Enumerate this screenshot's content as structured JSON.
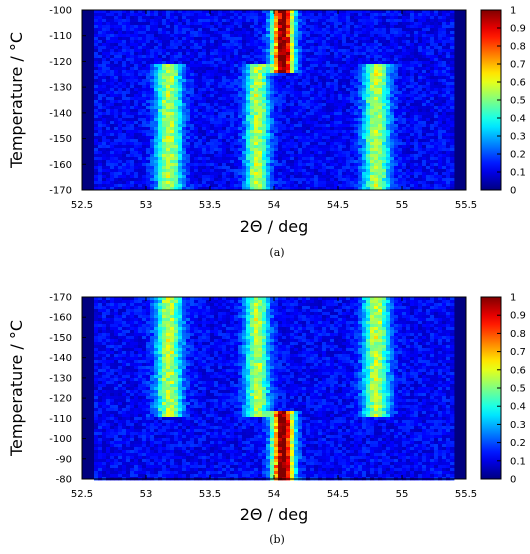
{
  "figure": {
    "caption_a": "(a)",
    "caption_b": "(b)"
  },
  "colorbar": {
    "ticks": [
      "0",
      "0.1",
      "0.2",
      "0.3",
      "0.4",
      "0.5",
      "0.6",
      "0.7",
      "0.8",
      "0.9",
      "1"
    ],
    "colormap": "jet",
    "colors": [
      "#00008f",
      "#0000ff",
      "#00ffff",
      "#80ff80",
      "#ffff00",
      "#ff0000",
      "#800000"
    ]
  },
  "chart_data": [
    {
      "type": "heatmap",
      "panel": "a",
      "xlabel": "2Θ / deg",
      "ylabel": "Temperature / °C",
      "xlim": [
        52.5,
        55.5
      ],
      "ylim": [
        -170,
        -100
      ],
      "y_axis_direction": "up",
      "xticks": [
        "52.5",
        "53",
        "53.5",
        "54",
        "54.5",
        "55",
        "55.5"
      ],
      "yticks": [
        "-170",
        "-160",
        "-150",
        "-140",
        "-130",
        "-120",
        "-110",
        "-100"
      ],
      "zlim": [
        0,
        1
      ],
      "background_intensity": 0.12,
      "data_x_range": [
        52.6,
        55.4
      ],
      "features": [
        {
          "peak_center": 53.18,
          "peak_width": 0.22,
          "t_range": [
            -170,
            -122
          ],
          "intensity": 0.45
        },
        {
          "peak_center": 53.87,
          "peak_width": 0.2,
          "t_range": [
            -170,
            -122
          ],
          "intensity": 0.45
        },
        {
          "peak_center": 54.8,
          "peak_width": 0.22,
          "t_range": [
            -170,
            -122
          ],
          "intensity": 0.45
        },
        {
          "peak_center": 54.07,
          "peak_width": 0.18,
          "t_range": [
            -123,
            -100
          ],
          "intensity": 0.95
        }
      ]
    },
    {
      "type": "heatmap",
      "panel": "b",
      "xlabel": "2Θ / deg",
      "ylabel": "Temperature / °C",
      "xlim": [
        52.5,
        55.5
      ],
      "ylim": [
        -80,
        -170
      ],
      "y_axis_direction": "up, values decreasing",
      "xticks": [
        "52.5",
        "53",
        "53.5",
        "54",
        "54.5",
        "55",
        "55.5"
      ],
      "yticks": [
        "-80",
        "-90",
        "-100",
        "-110",
        "-120",
        "-130",
        "-140",
        "-150",
        "-160",
        "-170"
      ],
      "zlim": [
        0,
        1
      ],
      "background_intensity": 0.12,
      "data_x_range": [
        52.6,
        55.4
      ],
      "features": [
        {
          "peak_center": 53.18,
          "peak_width": 0.22,
          "t_range": [
            -170,
            -112
          ],
          "intensity": 0.45
        },
        {
          "peak_center": 53.87,
          "peak_width": 0.2,
          "t_range": [
            -170,
            -112
          ],
          "intensity": 0.45
        },
        {
          "peak_center": 54.8,
          "peak_width": 0.22,
          "t_range": [
            -170,
            -112
          ],
          "intensity": 0.45
        },
        {
          "peak_center": 54.07,
          "peak_width": 0.18,
          "t_range": [
            -112,
            -80
          ],
          "intensity": 0.95
        }
      ]
    }
  ]
}
